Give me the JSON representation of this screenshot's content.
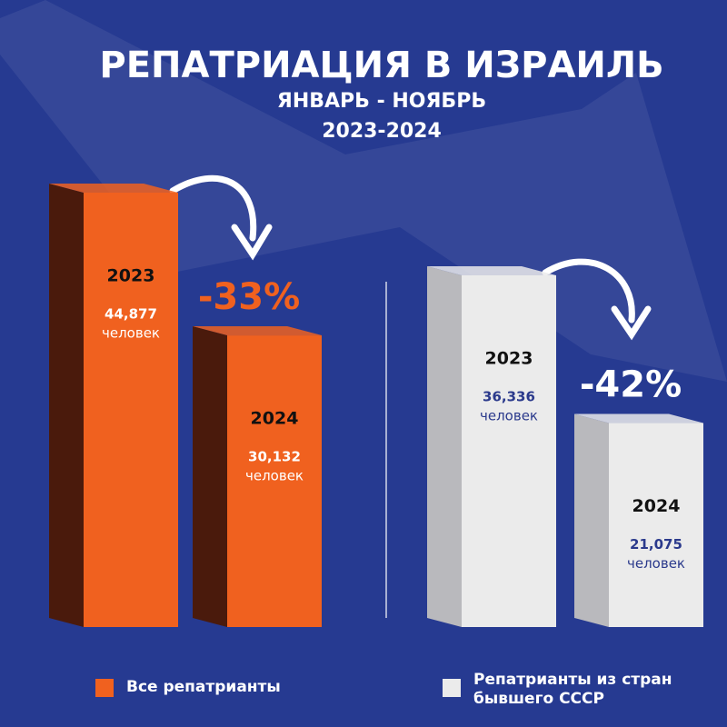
{
  "chart_data": {
    "type": "bar",
    "title": "РЕПАТРИАЦИЯ В ИЗРАИЛЬ",
    "subtitle": [
      "ЯНВАРЬ - НОЯБРЬ",
      "2023-2024"
    ],
    "categories": [
      "2023",
      "2024"
    ],
    "unit": "человек",
    "series": [
      {
        "name": "Все репатрианты",
        "color": "#f0611f",
        "side_color": "#4a1a0c",
        "text_color": "#ffffff",
        "values": [
          44877,
          30132
        ],
        "value_labels": [
          "44,877",
          "30,132"
        ],
        "change": "-33%",
        "change_color": "#f0611f"
      },
      {
        "name": "Репатрианты из стран бывшего СССР",
        "color": "#ebebeb",
        "side_color": "#b9b9bd",
        "text_color": "#2b3a8c",
        "values": [
          36336,
          21075
        ],
        "value_labels": [
          "36,336",
          "21,075"
        ],
        "change": "-42%",
        "change_color": "#ffffff"
      }
    ]
  }
}
